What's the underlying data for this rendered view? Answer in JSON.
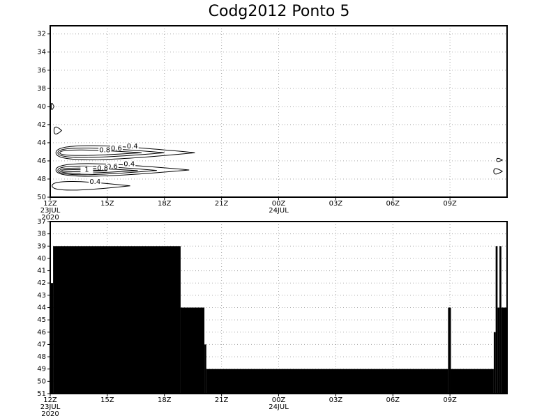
{
  "chart_data": [
    {
      "type": "contour",
      "title": "Codg2012 Ponto 5",
      "xlim": [
        0,
        24
      ],
      "xticks": [
        {
          "value": 0,
          "label": "12Z"
        },
        {
          "value": 3,
          "label": "15Z"
        },
        {
          "value": 6,
          "label": "18Z"
        },
        {
          "value": 9,
          "label": "21Z"
        },
        {
          "value": 12,
          "label": "00Z"
        },
        {
          "value": 15,
          "label": "03Z"
        },
        {
          "value": 18,
          "label": "06Z"
        },
        {
          "value": 21,
          "label": "09Z"
        }
      ],
      "date_labels": [
        {
          "value": 0,
          "label": "23JUL"
        },
        {
          "value": 12,
          "label": "24JUL"
        }
      ],
      "year_labels": [
        {
          "value": 0,
          "label": "2020"
        }
      ],
      "ylim": [
        31.1,
        50
      ],
      "y_inverted": true,
      "yticks": [
        32,
        34,
        36,
        38,
        40,
        42,
        44,
        46,
        48,
        50
      ],
      "grid": true,
      "color": "#000000",
      "contours": [
        {
          "level": 0.4,
          "x": [
            0.3,
            7.6
          ],
          "y": [
            44.2,
            46.0
          ]
        },
        {
          "level": 0.6,
          "x": [
            0.4,
            6.0
          ],
          "y": [
            44.5,
            45.7
          ]
        },
        {
          "level": 0.8,
          "x": [
            0.5,
            4.8
          ],
          "y": [
            44.75,
            45.45
          ]
        },
        {
          "level": 0.4,
          "x": [
            0.3,
            7.3
          ],
          "y": [
            46.2,
            47.8
          ]
        },
        {
          "level": 0.6,
          "x": [
            0.4,
            5.6
          ],
          "y": [
            46.5,
            47.6
          ]
        },
        {
          "level": 0.8,
          "x": [
            0.5,
            4.6
          ],
          "y": [
            46.75,
            47.4
          ]
        },
        {
          "level": 1,
          "x": [
            0.6,
            3.0
          ],
          "y": [
            46.95,
            47.2
          ]
        },
        {
          "level": 0.4,
          "x": [
            0.2,
            0.6
          ],
          "y": [
            42.2,
            43.1
          ]
        },
        {
          "level": 0.4,
          "x": [
            0.05,
            0.2
          ],
          "y": [
            39.6,
            40.4
          ]
        },
        {
          "level": 0.4,
          "x": [
            0.1,
            4.2
          ],
          "y": [
            48.2,
            49.3
          ]
        },
        {
          "level": 0.4,
          "x": [
            23.45,
            23.75
          ],
          "y": [
            45.7,
            46.1
          ]
        },
        {
          "level": 0.4,
          "x": [
            23.3,
            23.75
          ],
          "y": [
            46.8,
            47.5
          ]
        }
      ]
    },
    {
      "type": "step-area",
      "xlim": [
        0,
        24
      ],
      "xticks": [
        {
          "value": 0,
          "label": "12Z"
        },
        {
          "value": 3,
          "label": "15Z"
        },
        {
          "value": 6,
          "label": "18Z"
        },
        {
          "value": 9,
          "label": "21Z"
        },
        {
          "value": 12,
          "label": "00Z"
        },
        {
          "value": 15,
          "label": "03Z"
        },
        {
          "value": 18,
          "label": "06Z"
        },
        {
          "value": 21,
          "label": "09Z"
        }
      ],
      "date_labels": [
        {
          "value": 0,
          "label": "23JUL"
        },
        {
          "value": 12,
          "label": "24JUL"
        }
      ],
      "year_labels": [
        {
          "value": 0,
          "label": "2020"
        }
      ],
      "ylim": [
        37,
        51
      ],
      "y_inverted": true,
      "yticks": [
        37,
        38,
        39,
        40,
        41,
        42,
        43,
        44,
        45,
        46,
        47,
        48,
        49,
        50,
        51
      ],
      "grid": true,
      "color": "#000000",
      "x": [
        0,
        0.15,
        6.85,
        8.1,
        8.2,
        20.9,
        21.05,
        23.3,
        23.4,
        23.5,
        23.6,
        23.7
      ],
      "values": [
        42,
        39,
        44,
        47,
        49,
        44,
        49,
        46,
        39,
        44,
        39,
        44
      ]
    }
  ]
}
